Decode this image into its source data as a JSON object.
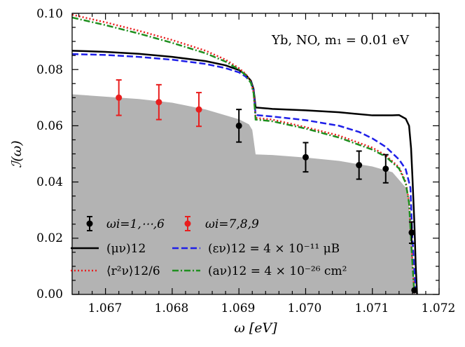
{
  "chart_data": {
    "type": "line",
    "xlabel": "ω [eV]",
    "ylabel": "ℐ(ω)",
    "xlim": [
      1.0665,
      1.072
    ],
    "ylim": [
      0.0,
      0.1
    ],
    "x_ticks": [
      "1.067",
      "1.068",
      "1.069",
      "1.070",
      "1.071",
      "1.072"
    ],
    "x_tick_values": [
      1.067,
      1.068,
      1.069,
      1.07,
      1.071,
      1.072
    ],
    "y_ticks": [
      "0.00",
      "0.02",
      "0.04",
      "0.06",
      "0.08",
      "0.10"
    ],
    "y_tick_values": [
      0.0,
      0.02,
      0.04,
      0.06,
      0.08,
      0.1
    ],
    "annotation": "Yb, NO, m₁ = 0.01 eV",
    "legend_position": "lower-left",
    "shaded_region": {
      "color": "#b3b3b3",
      "points": [
        [
          1.0665,
          0.0712
        ],
        [
          1.0675,
          0.0695
        ],
        [
          1.068,
          0.0682
        ],
        [
          1.0685,
          0.0658
        ],
        [
          1.069,
          0.0623
        ],
        [
          1.06915,
          0.0605
        ],
        [
          1.0692,
          0.0585
        ],
        [
          1.06925,
          0.0498
        ],
        [
          1.0695,
          0.0496
        ],
        [
          1.07,
          0.0487
        ],
        [
          1.0705,
          0.0475
        ],
        [
          1.071,
          0.0455
        ],
        [
          1.0713,
          0.0435
        ],
        [
          1.0715,
          0.038
        ],
        [
          1.07157,
          0.028
        ],
        [
          1.0716,
          0.012
        ],
        [
          1.07165,
          0.0
        ]
      ]
    },
    "series": [
      {
        "name": "(μν)12",
        "color": "#000000",
        "style": "solid",
        "points": [
          [
            1.0665,
            0.0867
          ],
          [
            1.067,
            0.0863
          ],
          [
            1.0675,
            0.0856
          ],
          [
            1.068,
            0.0845
          ],
          [
            1.0685,
            0.083
          ],
          [
            1.0688,
            0.0815
          ],
          [
            1.069,
            0.0798
          ],
          [
            1.0691,
            0.0782
          ],
          [
            1.06918,
            0.076
          ],
          [
            1.06922,
            0.073
          ],
          [
            1.06925,
            0.0665
          ],
          [
            1.0695,
            0.066
          ],
          [
            1.07,
            0.0655
          ],
          [
            1.0705,
            0.0648
          ],
          [
            1.071,
            0.0637
          ],
          [
            1.0713,
            0.0637
          ],
          [
            1.0714,
            0.0638
          ],
          [
            1.0715,
            0.0625
          ],
          [
            1.07155,
            0.06
          ],
          [
            1.07158,
            0.052
          ],
          [
            1.0716,
            0.042
          ],
          [
            1.07163,
            0.025
          ],
          [
            1.07165,
            0.01
          ],
          [
            1.07167,
            0.0
          ]
        ]
      },
      {
        "name": "(εν)12 = 4 × 10⁻¹¹ μB",
        "color": "#1f1fe8",
        "style": "dashed",
        "points": [
          [
            1.0665,
            0.0855
          ],
          [
            1.067,
            0.0852
          ],
          [
            1.0675,
            0.0845
          ],
          [
            1.068,
            0.0835
          ],
          [
            1.0685,
            0.082
          ],
          [
            1.0688,
            0.0805
          ],
          [
            1.069,
            0.079
          ],
          [
            1.0691,
            0.0775
          ],
          [
            1.06918,
            0.0755
          ],
          [
            1.06922,
            0.0725
          ],
          [
            1.06925,
            0.0638
          ],
          [
            1.0695,
            0.0633
          ],
          [
            1.07,
            0.062
          ],
          [
            1.0705,
            0.06
          ],
          [
            1.0708,
            0.0578
          ],
          [
            1.071,
            0.0555
          ],
          [
            1.0712,
            0.0525
          ],
          [
            1.0714,
            0.048
          ],
          [
            1.0715,
            0.0445
          ],
          [
            1.07157,
            0.038
          ],
          [
            1.0716,
            0.02
          ],
          [
            1.07165,
            0.0
          ]
        ]
      },
      {
        "name": "⟨r²ν⟩12/6",
        "color": "#e81e1e",
        "style": "dotted",
        "points": [
          [
            1.0665,
            0.0995
          ],
          [
            1.067,
            0.0968
          ],
          [
            1.0675,
            0.0938
          ],
          [
            1.068,
            0.0905
          ],
          [
            1.0685,
            0.0867
          ],
          [
            1.0688,
            0.0835
          ],
          [
            1.069,
            0.0805
          ],
          [
            1.0691,
            0.0785
          ],
          [
            1.06918,
            0.0755
          ],
          [
            1.06922,
            0.072
          ],
          [
            1.06925,
            0.0628
          ],
          [
            1.0695,
            0.0622
          ],
          [
            1.07,
            0.0595
          ],
          [
            1.0705,
            0.0565
          ],
          [
            1.071,
            0.0522
          ],
          [
            1.0712,
            0.0495
          ],
          [
            1.0714,
            0.0452
          ],
          [
            1.0715,
            0.04
          ],
          [
            1.07155,
            0.033
          ],
          [
            1.0716,
            0.012
          ],
          [
            1.07163,
            0.0
          ]
        ]
      },
      {
        "name": "(aν)12 = 4 × 10⁻²⁶ cm²",
        "color": "#1f8f1f",
        "style": "dashdot",
        "points": [
          [
            1.0665,
            0.0985
          ],
          [
            1.067,
            0.0958
          ],
          [
            1.0675,
            0.0928
          ],
          [
            1.068,
            0.0895
          ],
          [
            1.0685,
            0.0858
          ],
          [
            1.0688,
            0.0828
          ],
          [
            1.069,
            0.08
          ],
          [
            1.0691,
            0.078
          ],
          [
            1.06918,
            0.0752
          ],
          [
            1.06922,
            0.0716
          ],
          [
            1.06925,
            0.0622
          ],
          [
            1.0695,
            0.0616
          ],
          [
            1.07,
            0.059
          ],
          [
            1.0705,
            0.0558
          ],
          [
            1.071,
            0.0515
          ],
          [
            1.0712,
            0.049
          ],
          [
            1.0714,
            0.0448
          ],
          [
            1.0715,
            0.0396
          ],
          [
            1.07155,
            0.0325
          ],
          [
            1.0716,
            0.011
          ],
          [
            1.07163,
            0.0
          ]
        ]
      }
    ],
    "points_groups": [
      {
        "name": "ωi=1,⋯,6",
        "color": "#000000",
        "points": [
          {
            "x": 1.069,
            "y": 0.06,
            "err": 0.0058
          },
          {
            "x": 1.07,
            "y": 0.0488,
            "err": 0.0052
          },
          {
            "x": 1.0708,
            "y": 0.046,
            "err": 0.005
          },
          {
            "x": 1.0712,
            "y": 0.0447,
            "err": 0.005
          },
          {
            "x": 1.07159,
            "y": 0.022,
            "err": 0.0038
          },
          {
            "x": 1.07163,
            "y": 0.0015,
            "err": 0.0
          }
        ]
      },
      {
        "name": "ωi=7,8,9",
        "color": "#e81e1e",
        "points": [
          {
            "x": 1.0672,
            "y": 0.07,
            "err": 0.0063
          },
          {
            "x": 1.0678,
            "y": 0.0684,
            "err": 0.0062
          },
          {
            "x": 1.0684,
            "y": 0.0658,
            "err": 0.006
          }
        ]
      }
    ],
    "legend": {
      "row1_left": "ωi=1,⋯,6",
      "row1_right": "ωi=7,8,9",
      "row2_left": "(μν)12",
      "row2_right": "(εν)12 = 4 × 10⁻¹¹ μB",
      "row3_left": "⟨r²ν⟩12/6",
      "row3_right": "(aν)12 = 4 × 10⁻²⁶ cm²"
    }
  }
}
